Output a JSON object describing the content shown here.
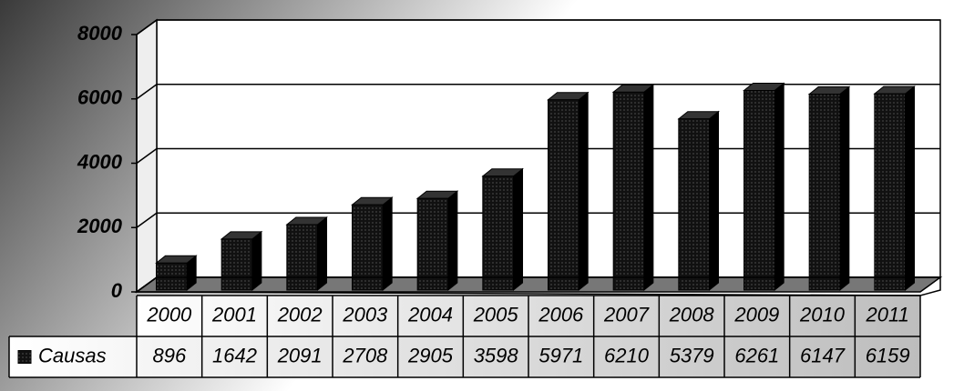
{
  "chart_data": {
    "type": "bar3d",
    "categories": [
      "2000",
      "2001",
      "2002",
      "2003",
      "2004",
      "2005",
      "2006",
      "2007",
      "2008",
      "2009",
      "2010",
      "2011"
    ],
    "series": [
      {
        "name": "Causas",
        "color": "#111111",
        "values": [
          896,
          1642,
          2091,
          2708,
          2905,
          3598,
          5971,
          6210,
          5379,
          6261,
          6147,
          6159
        ]
      }
    ],
    "ylim": [
      0,
      8000
    ],
    "yticks": [
      0,
      2000,
      4000,
      6000,
      8000
    ],
    "grid": true
  }
}
